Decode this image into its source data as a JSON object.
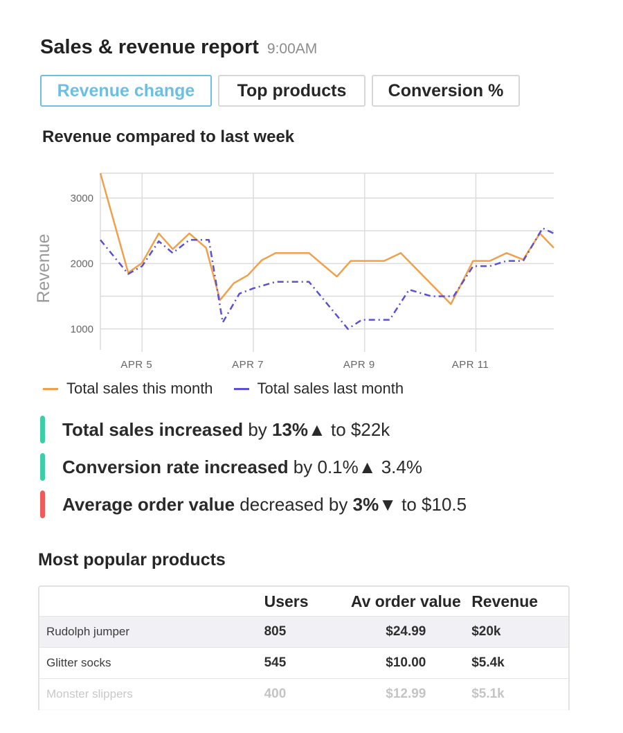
{
  "header": {
    "title": "Sales & revenue report",
    "time": "9:00AM"
  },
  "tabs": [
    {
      "label": "Revenue change",
      "active": true
    },
    {
      "label": "Top products",
      "active": false
    },
    {
      "label": "Conversion %",
      "active": false
    }
  ],
  "chart_title": "Revenue compared to last week",
  "chart_data": {
    "type": "line",
    "title": "Revenue compared to last week",
    "xlabel": "",
    "ylabel": "Revenue",
    "ylim": [
      680,
      3380
    ],
    "yticks": [
      1000,
      2000,
      3000
    ],
    "x_tick_labels": [
      "APR 5",
      "APR 7",
      "APR 9",
      "APR 11"
    ],
    "grid": true,
    "legend_position": "bottom",
    "series": [
      {
        "name": "Total sales this month",
        "color": "#f0a04b",
        "style": "solid",
        "points": [
          [
            0,
            3380
          ],
          [
            0.5,
            1860
          ],
          [
            0.75,
            2010
          ],
          [
            1.05,
            2460
          ],
          [
            1.3,
            2220
          ],
          [
            1.6,
            2460
          ],
          [
            1.9,
            2240
          ],
          [
            2.15,
            1440
          ],
          [
            2.4,
            1700
          ],
          [
            2.65,
            1820
          ],
          [
            2.9,
            2050
          ],
          [
            3.15,
            2160
          ],
          [
            3.75,
            2160
          ],
          [
            4.25,
            1800
          ],
          [
            4.5,
            2040
          ],
          [
            5.1,
            2040
          ],
          [
            5.4,
            2160
          ],
          [
            6.3,
            1380
          ],
          [
            6.7,
            2040
          ],
          [
            7.0,
            2040
          ],
          [
            7.3,
            2160
          ],
          [
            7.6,
            2060
          ],
          [
            7.9,
            2460
          ],
          [
            8.15,
            2240
          ]
        ]
      },
      {
        "name": "Total sales last month",
        "color": "#5a50d4",
        "style": "dashdot",
        "points": [
          [
            0,
            2360
          ],
          [
            0.5,
            1840
          ],
          [
            0.75,
            1960
          ],
          [
            1.05,
            2340
          ],
          [
            1.3,
            2160
          ],
          [
            1.6,
            2360
          ],
          [
            1.95,
            2360
          ],
          [
            2.2,
            1100
          ],
          [
            2.5,
            1540
          ],
          [
            2.75,
            1620
          ],
          [
            3.15,
            1720
          ],
          [
            3.75,
            1720
          ],
          [
            4.45,
            1000
          ],
          [
            4.7,
            1140
          ],
          [
            5.2,
            1140
          ],
          [
            5.55,
            1600
          ],
          [
            5.95,
            1500
          ],
          [
            6.35,
            1500
          ],
          [
            6.7,
            1960
          ],
          [
            7.0,
            1960
          ],
          [
            7.3,
            2040
          ],
          [
            7.6,
            2040
          ],
          [
            7.95,
            2540
          ],
          [
            8.15,
            2460
          ]
        ]
      }
    ]
  },
  "highlights": [
    {
      "color": "#3dcea8",
      "bold": "Total sales increased",
      "mid": " by ",
      "value": "13%▲",
      "rest": " to $22k",
      "value_bold": true
    },
    {
      "color": "#3dcea8",
      "bold": "Conversion rate increased",
      "mid": " by 0.1%",
      "value": "",
      "rest": "▲ 3.4%",
      "value_bold": false
    },
    {
      "color": "#ef5b5b",
      "bold": "Average order value",
      "mid": " decreased by ",
      "value": "3%▼",
      "rest": " to $10.5",
      "value_bold": true
    }
  ],
  "products": {
    "title": "Most popular products",
    "columns": [
      "",
      "Users",
      "Av order value",
      "Revenue"
    ],
    "rows": [
      [
        "Rudolph jumper",
        "805",
        "$24.99",
        "$20k"
      ],
      [
        "Glitter socks",
        "545",
        "$10.00",
        "$5.4k"
      ],
      [
        "Monster slippers",
        "400",
        "$12.99",
        "$5.1k"
      ]
    ]
  }
}
